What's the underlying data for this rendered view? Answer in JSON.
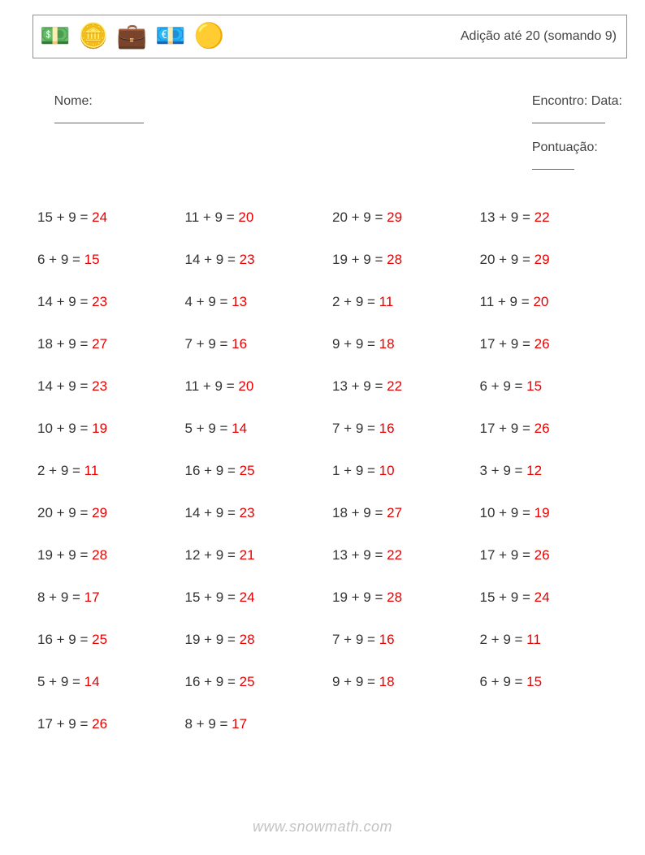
{
  "header": {
    "title_text": "Adição até 20 (somando 9)",
    "icons": [
      "💵",
      "🪙",
      "💼",
      "💶",
      "🟡"
    ]
  },
  "meta": {
    "nome_label": "Nome:",
    "encontro_label": "Encontro: Data:",
    "pontuacao_label": "Pontuação:",
    "blank_widths": {
      "nome": 110,
      "data": 90,
      "pont": 52
    }
  },
  "style": {
    "text_color": "#333333",
    "answer_color": "#e60000",
    "border_color": "#909090",
    "background": "#ffffff",
    "font_size_body": 17,
    "font_size_title": 16,
    "font_size_meta": 16,
    "columns": 4,
    "row_gap": 32,
    "icon_size": 30
  },
  "problems": [
    {
      "a": 15,
      "b": 9,
      "ans": 24
    },
    {
      "a": 11,
      "b": 9,
      "ans": 20
    },
    {
      "a": 20,
      "b": 9,
      "ans": 29
    },
    {
      "a": 13,
      "b": 9,
      "ans": 22
    },
    {
      "a": 6,
      "b": 9,
      "ans": 15
    },
    {
      "a": 14,
      "b": 9,
      "ans": 23
    },
    {
      "a": 19,
      "b": 9,
      "ans": 28
    },
    {
      "a": 20,
      "b": 9,
      "ans": 29
    },
    {
      "a": 14,
      "b": 9,
      "ans": 23
    },
    {
      "a": 4,
      "b": 9,
      "ans": 13
    },
    {
      "a": 2,
      "b": 9,
      "ans": 11
    },
    {
      "a": 11,
      "b": 9,
      "ans": 20
    },
    {
      "a": 18,
      "b": 9,
      "ans": 27
    },
    {
      "a": 7,
      "b": 9,
      "ans": 16
    },
    {
      "a": 9,
      "b": 9,
      "ans": 18
    },
    {
      "a": 17,
      "b": 9,
      "ans": 26
    },
    {
      "a": 14,
      "b": 9,
      "ans": 23
    },
    {
      "a": 11,
      "b": 9,
      "ans": 20
    },
    {
      "a": 13,
      "b": 9,
      "ans": 22
    },
    {
      "a": 6,
      "b": 9,
      "ans": 15
    },
    {
      "a": 10,
      "b": 9,
      "ans": 19
    },
    {
      "a": 5,
      "b": 9,
      "ans": 14
    },
    {
      "a": 7,
      "b": 9,
      "ans": 16
    },
    {
      "a": 17,
      "b": 9,
      "ans": 26
    },
    {
      "a": 2,
      "b": 9,
      "ans": 11
    },
    {
      "a": 16,
      "b": 9,
      "ans": 25
    },
    {
      "a": 1,
      "b": 9,
      "ans": 10
    },
    {
      "a": 3,
      "b": 9,
      "ans": 12
    },
    {
      "a": 20,
      "b": 9,
      "ans": 29
    },
    {
      "a": 14,
      "b": 9,
      "ans": 23
    },
    {
      "a": 18,
      "b": 9,
      "ans": 27
    },
    {
      "a": 10,
      "b": 9,
      "ans": 19
    },
    {
      "a": 19,
      "b": 9,
      "ans": 28
    },
    {
      "a": 12,
      "b": 9,
      "ans": 21
    },
    {
      "a": 13,
      "b": 9,
      "ans": 22
    },
    {
      "a": 17,
      "b": 9,
      "ans": 26
    },
    {
      "a": 8,
      "b": 9,
      "ans": 17
    },
    {
      "a": 15,
      "b": 9,
      "ans": 24
    },
    {
      "a": 19,
      "b": 9,
      "ans": 28
    },
    {
      "a": 15,
      "b": 9,
      "ans": 24
    },
    {
      "a": 16,
      "b": 9,
      "ans": 25
    },
    {
      "a": 19,
      "b": 9,
      "ans": 28
    },
    {
      "a": 7,
      "b": 9,
      "ans": 16
    },
    {
      "a": 2,
      "b": 9,
      "ans": 11
    },
    {
      "a": 5,
      "b": 9,
      "ans": 14
    },
    {
      "a": 16,
      "b": 9,
      "ans": 25
    },
    {
      "a": 9,
      "b": 9,
      "ans": 18
    },
    {
      "a": 6,
      "b": 9,
      "ans": 15
    },
    {
      "a": 17,
      "b": 9,
      "ans": 26
    },
    {
      "a": 8,
      "b": 9,
      "ans": 17
    }
  ],
  "watermark": "www.snowmath.com"
}
